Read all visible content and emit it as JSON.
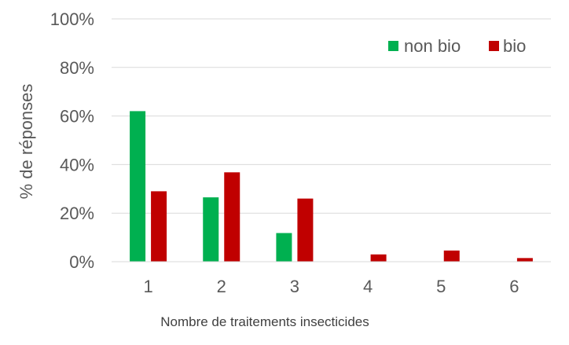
{
  "chart_data": {
    "type": "bar",
    "title": "",
    "xlabel": "Nombre de traitements insecticides",
    "ylabel": "% de réponses",
    "categories": [
      "1",
      "2",
      "3",
      "4",
      "5",
      "6"
    ],
    "series": [
      {
        "name": "non bio",
        "color": "#00B050",
        "values": [
          62,
          26.5,
          11.8,
          0,
          0,
          0
        ]
      },
      {
        "name": "bio",
        "color": "#C00000",
        "values": [
          29,
          36.8,
          26,
          3,
          4.6,
          1.5
        ]
      }
    ],
    "yticks": [
      "0%",
      "20%",
      "40%",
      "60%",
      "80%",
      "100%"
    ],
    "ylim": [
      0,
      100
    ],
    "grid": true,
    "legend_position": "top-right"
  }
}
